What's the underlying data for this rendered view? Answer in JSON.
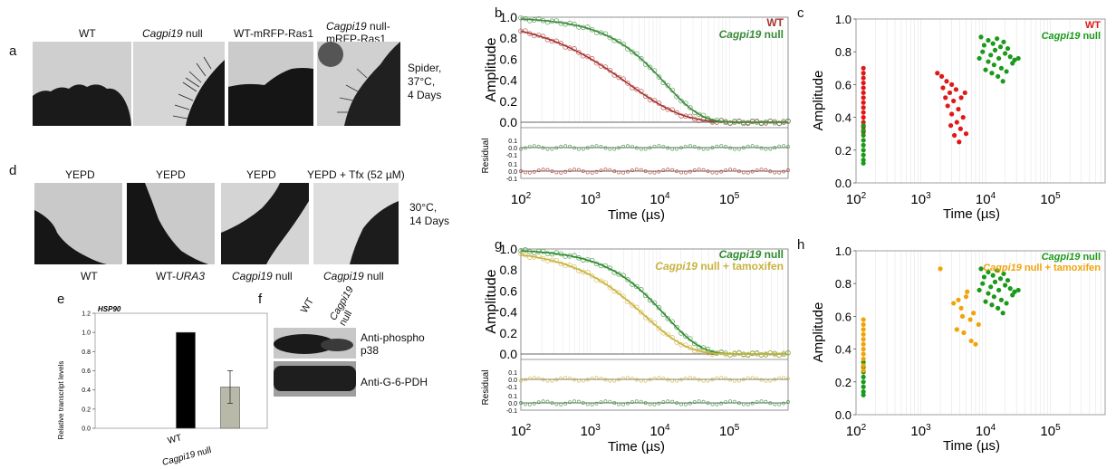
{
  "panel_labels": {
    "a": "a",
    "b": "b",
    "c": "c",
    "d": "d",
    "e": "e",
    "f": "f",
    "g": "g",
    "h": "h"
  },
  "panel_a": {
    "headers": [
      {
        "plain": "WT"
      },
      {
        "italic": "Cagpi19",
        "plain": " null"
      },
      {
        "plain": "WT-mRFP-Ras1"
      },
      {
        "italic": "Cagpi19",
        "plain": " null-",
        "line2": "mRFP-Ras1"
      }
    ],
    "condition": [
      "Spider,",
      "37°C,",
      "4 Days"
    ]
  },
  "panel_d": {
    "headers": [
      "YEPD",
      "YEPD",
      "YEPD",
      "YEPD + Tfx (52 µM)"
    ],
    "footers": [
      {
        "plain": "WT"
      },
      {
        "plain": "WT-",
        "italic": "URA3"
      },
      {
        "italic": "Cagpi19",
        "plain": " null"
      },
      {
        "italic": "Cagpi19",
        "plain": " null"
      }
    ],
    "condition": [
      "30°C,",
      "14 Days"
    ]
  },
  "panel_e": {
    "gene": "HSP90",
    "ylabel": "Relative transcript levels",
    "x_wt": "WT",
    "x_null_italic": "Cagpi19",
    "x_null_plain": " null"
  },
  "panel_f": {
    "lane1": "WT",
    "lane2_line1": "Cagpi19",
    "lane2_line2": "null",
    "band1_line1": "Anti-phospho",
    "band1_line2": "p38",
    "band2": "Anti-G-6-PDH"
  },
  "chart_data": [
    {
      "panel": "e",
      "type": "bar",
      "title": "HSP90",
      "ylabel": "Relative transcript levels",
      "categories": [
        "WT",
        "Cagpi19 null"
      ],
      "values": [
        1.0,
        0.43
      ],
      "errors": [
        0,
        0.17
      ],
      "colors": [
        "#000000",
        "#b9b9a9"
      ],
      "ylim": [
        0,
        1.2
      ],
      "yticks": [
        "0.0",
        "0.2",
        "0.4",
        "0.6",
        "0.8",
        "1.0",
        "1.2"
      ]
    },
    {
      "panel": "b",
      "type": "line",
      "xlabel": "Time (µs)",
      "ylabel": "Amplitude",
      "residual_label": "Residual",
      "xscale": "log",
      "xlim": [
        100,
        700000
      ],
      "ylim": [
        0,
        1
      ],
      "xticks": [
        "10",
        "10",
        "10",
        "10",
        "10"
      ],
      "xtick_exp": [
        "2",
        "3",
        "4",
        "5"
      ],
      "yticks": [
        "0.0",
        "0.2",
        "0.4",
        "0.6",
        "0.8",
        "1.0"
      ],
      "residual_ticks": [
        "0.1",
        "0.0",
        "-0.1"
      ],
      "series": [
        {
          "name": "WT",
          "color": "#a8342f",
          "tau": 3500,
          "beta": 0.55,
          "offset": 0.0
        },
        {
          "name_italic": "Cagpi19",
          "name_plain": " null",
          "color": "#3a8a3a",
          "tau": 12000,
          "beta": 0.85,
          "offset": 0.0
        }
      ],
      "legend": "top-right"
    },
    {
      "panel": "g",
      "type": "line",
      "xlabel": "Time (µs)",
      "ylabel": "Amplitude",
      "residual_label": "Residual",
      "xscale": "log",
      "xlim": [
        100,
        700000
      ],
      "ylim": [
        0,
        1
      ],
      "yticks": [
        "0.0",
        "0.2",
        "0.4",
        "0.6",
        "0.8",
        "1.0"
      ],
      "residual_ticks": [
        "0.1",
        "0.0",
        "-0.1"
      ],
      "series": [
        {
          "name_italic": "Cagpi19",
          "name_plain": " null",
          "color": "#2e8b2e",
          "tau": 12000,
          "beta": 0.85
        },
        {
          "name_italic": "Cagpi19",
          "name_plain": " null + tamoxifen",
          "color": "#c9b23e",
          "tau": 6000,
          "beta": 0.7
        }
      ],
      "legend": "top-right"
    },
    {
      "panel": "c",
      "type": "scatter",
      "xlabel": "Time (µs)",
      "ylabel": "Amplitude",
      "xscale": "log",
      "xlim": [
        100,
        700000
      ],
      "ylim": [
        0,
        1
      ],
      "yticks": [
        "0.0",
        "0.2",
        "0.4",
        "0.6",
        "0.8",
        "1.0"
      ],
      "series": [
        {
          "name": "WT",
          "color": "#e01818",
          "points": [
            [
              130,
              0.7
            ],
            [
              130,
              0.67
            ],
            [
              130,
              0.64
            ],
            [
              130,
              0.61
            ],
            [
              130,
              0.58
            ],
            [
              130,
              0.55
            ],
            [
              130,
              0.52
            ],
            [
              130,
              0.49
            ],
            [
              130,
              0.46
            ],
            [
              130,
              0.43
            ],
            [
              130,
              0.4
            ],
            [
              130,
              0.37
            ],
            [
              130,
              0.34
            ],
            [
              130,
              0.31
            ],
            [
              1800,
              0.67
            ],
            [
              2100,
              0.65
            ],
            [
              2500,
              0.62
            ],
            [
              2200,
              0.58
            ],
            [
              3000,
              0.6
            ],
            [
              2800,
              0.55
            ],
            [
              3500,
              0.57
            ],
            [
              3200,
              0.5
            ],
            [
              2600,
              0.47
            ],
            [
              3800,
              0.45
            ],
            [
              4200,
              0.52
            ],
            [
              3000,
              0.42
            ],
            [
              4500,
              0.4
            ],
            [
              3600,
              0.37
            ],
            [
              2900,
              0.35
            ],
            [
              4100,
              0.33
            ],
            [
              5000,
              0.3
            ],
            [
              3300,
              0.29
            ],
            [
              4800,
              0.55
            ],
            [
              2400,
              0.52
            ],
            [
              3900,
              0.25
            ]
          ]
        },
        {
          "name_italic": "Cagpi19",
          "name_plain": " null",
          "color": "#1a9a1a",
          "points": [
            [
              130,
              0.35
            ],
            [
              130,
              0.32
            ],
            [
              130,
              0.29
            ],
            [
              130,
              0.26
            ],
            [
              130,
              0.23
            ],
            [
              130,
              0.2
            ],
            [
              130,
              0.17
            ],
            [
              130,
              0.14
            ],
            [
              130,
              0.12
            ],
            [
              8500,
              0.89
            ],
            [
              9500,
              0.84
            ],
            [
              11000,
              0.87
            ],
            [
              13000,
              0.85
            ],
            [
              15000,
              0.88
            ],
            [
              17000,
              0.83
            ],
            [
              19000,
              0.86
            ],
            [
              9000,
              0.8
            ],
            [
              12000,
              0.78
            ],
            [
              14000,
              0.81
            ],
            [
              16000,
              0.76
            ],
            [
              20000,
              0.79
            ],
            [
              24000,
              0.77
            ],
            [
              28000,
              0.75
            ],
            [
              11000,
              0.74
            ],
            [
              13500,
              0.72
            ],
            [
              17500,
              0.7
            ],
            [
              21000,
              0.68
            ],
            [
              15500,
              0.65
            ],
            [
              18500,
              0.62
            ],
            [
              10000,
              0.69
            ],
            [
              26000,
              0.73
            ],
            [
              32000,
              0.76
            ],
            [
              22000,
              0.82
            ],
            [
              8000,
              0.76
            ],
            [
              12500,
              0.67
            ]
          ]
        }
      ],
      "legend": "top-right"
    },
    {
      "panel": "h",
      "type": "scatter",
      "xlabel": "Time (µs)",
      "ylabel": "Amplitude",
      "xscale": "log",
      "xlim": [
        100,
        700000
      ],
      "ylim": [
        0,
        1
      ],
      "yticks": [
        "0.0",
        "0.2",
        "0.4",
        "0.6",
        "0.8",
        "1.0"
      ],
      "series": [
        {
          "name_italic": "Cagpi19",
          "name_plain": " null",
          "color": "#1a9a1a",
          "points": [
            [
              130,
              0.32
            ],
            [
              130,
              0.29
            ],
            [
              130,
              0.26
            ],
            [
              130,
              0.23
            ],
            [
              130,
              0.2
            ],
            [
              130,
              0.17
            ],
            [
              130,
              0.14
            ],
            [
              130,
              0.12
            ],
            [
              8500,
              0.89
            ],
            [
              9500,
              0.84
            ],
            [
              11000,
              0.87
            ],
            [
              13000,
              0.85
            ],
            [
              15000,
              0.88
            ],
            [
              17000,
              0.83
            ],
            [
              19000,
              0.86
            ],
            [
              9000,
              0.8
            ],
            [
              12000,
              0.78
            ],
            [
              14000,
              0.81
            ],
            [
              16000,
              0.76
            ],
            [
              20000,
              0.79
            ],
            [
              24000,
              0.77
            ],
            [
              28000,
              0.75
            ],
            [
              11000,
              0.74
            ],
            [
              13500,
              0.72
            ],
            [
              17500,
              0.7
            ],
            [
              21000,
              0.68
            ],
            [
              15500,
              0.65
            ],
            [
              18500,
              0.62
            ],
            [
              10000,
              0.69
            ],
            [
              26000,
              0.73
            ],
            [
              32000,
              0.76
            ],
            [
              22000,
              0.82
            ],
            [
              8000,
              0.76
            ],
            [
              12500,
              0.67
            ]
          ]
        },
        {
          "name_italic": "Cagpi19",
          "name_plain": " null + tamoxifen",
          "color": "#f0a30a",
          "points": [
            [
              130,
              0.58
            ],
            [
              130,
              0.55
            ],
            [
              130,
              0.52
            ],
            [
              130,
              0.49
            ],
            [
              130,
              0.46
            ],
            [
              130,
              0.43
            ],
            [
              130,
              0.4
            ],
            [
              130,
              0.37
            ],
            [
              130,
              0.34
            ],
            [
              130,
              0.3
            ],
            [
              130,
              0.27
            ],
            [
              2000,
              0.89
            ],
            [
              3200,
              0.68
            ],
            [
              3800,
              0.7
            ],
            [
              4200,
              0.65
            ],
            [
              5000,
              0.72
            ],
            [
              4400,
              0.6
            ],
            [
              5800,
              0.58
            ],
            [
              3600,
              0.52
            ],
            [
              4600,
              0.5
            ],
            [
              6000,
              0.45
            ],
            [
              7000,
              0.43
            ],
            [
              6500,
              0.62
            ],
            [
              5200,
              0.75
            ],
            [
              7800,
              0.55
            ]
          ]
        }
      ],
      "legend": "top-right"
    }
  ]
}
